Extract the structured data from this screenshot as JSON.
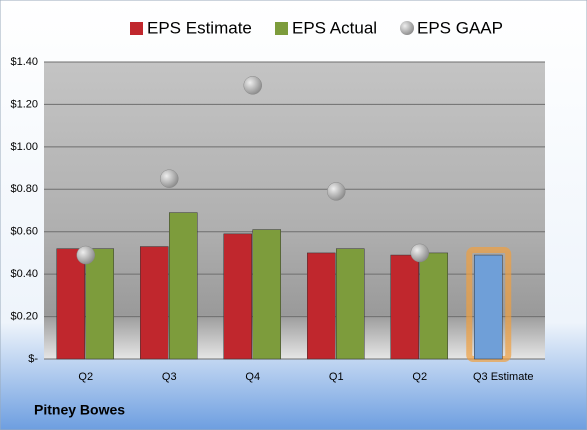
{
  "chart_data": {
    "type": "bar",
    "company": "Pitney Bowes",
    "categories": [
      "Q2",
      "Q3",
      "Q4",
      "Q1",
      "Q2",
      "Q3 Estimate"
    ],
    "series": [
      {
        "name": "EPS Estimate",
        "color": "#c0272d",
        "colors": [
          "#c0272d",
          "#c0272d",
          "#c0272d",
          "#c0272d",
          "#c0272d",
          "#6f9fd8"
        ],
        "values": [
          0.52,
          0.53,
          0.59,
          0.5,
          0.49,
          0.49
        ]
      },
      {
        "name": "EPS Actual",
        "color": "#7d9c3c",
        "values": [
          0.52,
          0.69,
          0.61,
          0.52,
          0.5,
          null
        ]
      },
      {
        "name": "EPS GAAP",
        "color": "#a8a8a8",
        "marker": "circle",
        "values": [
          0.49,
          0.85,
          1.29,
          0.79,
          0.5,
          null
        ]
      }
    ],
    "ylim": [
      0,
      1.4
    ],
    "yticks": [
      {
        "value": 0,
        "label": "$-"
      },
      {
        "value": 0.2,
        "label": "$0.20"
      },
      {
        "value": 0.4,
        "label": "$0.40"
      },
      {
        "value": 0.6,
        "label": "$0.60"
      },
      {
        "value": 0.8,
        "label": "$0.80"
      },
      {
        "value": 1.0,
        "label": "$1.00"
      },
      {
        "value": 1.2,
        "label": "$1.20"
      },
      {
        "value": 1.4,
        "label": "$1.40"
      }
    ],
    "grid": true,
    "legend": "top"
  }
}
